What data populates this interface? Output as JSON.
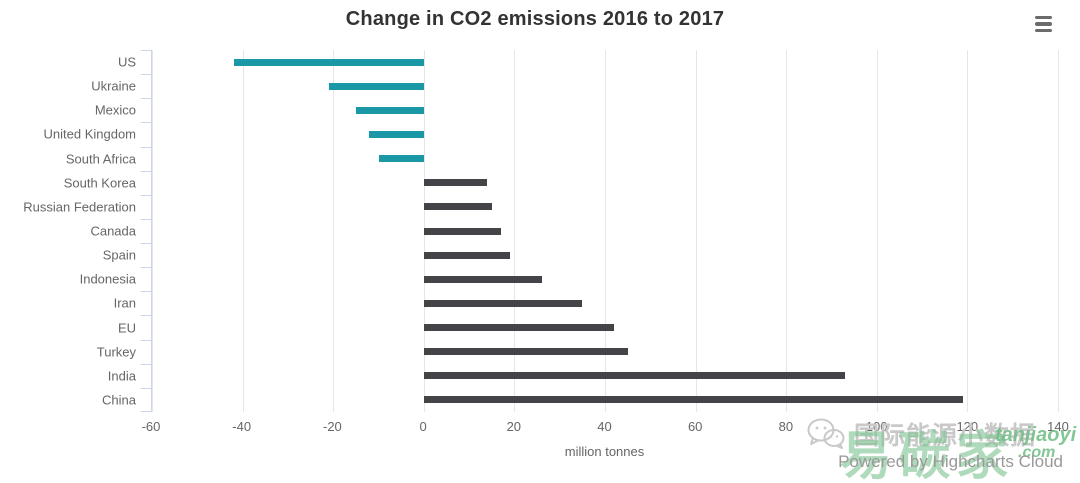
{
  "chart_data": {
    "type": "bar",
    "orientation": "horizontal",
    "title": "Change in CO2 emissions 2016 to 2017",
    "xlabel": "million tonnes",
    "categories": [
      "US",
      "Ukraine",
      "Mexico",
      "United Kingdom",
      "South Africa",
      "South Korea",
      "Russian Federation",
      "Canada",
      "Spain",
      "Indonesia",
      "Iran",
      "EU",
      "Turkey",
      "India",
      "China"
    ],
    "values": [
      -42,
      -21,
      -15,
      -12,
      -10,
      14,
      15,
      17,
      19,
      26,
      35,
      42,
      45,
      93,
      119
    ],
    "xlim": [
      -60,
      140
    ],
    "xticks": [
      -60,
      -40,
      -20,
      0,
      20,
      40,
      60,
      80,
      100,
      120,
      140
    ],
    "xtick_labels": [
      "-60",
      "-40",
      "-20",
      "0",
      "20",
      "40",
      "60",
      "80",
      "100",
      "120",
      "140"
    ],
    "grid": true,
    "legend": "none",
    "negative_color": "#1a98a6",
    "positive_color": "#434348",
    "grid_color": "#e6e6e6",
    "axis_line_color": "#ccd6eb",
    "label_color": "#666666",
    "title_color": "#333333"
  },
  "menu": {
    "label": "chart context menu"
  },
  "credits": {
    "label": "Powered by Highcharts Cloud"
  },
  "watermark": {
    "gray_text": "国际能源小数据",
    "green_chars": "易碳家",
    "green_domain": "tanjiaoyi",
    "green_tld": ".com"
  }
}
